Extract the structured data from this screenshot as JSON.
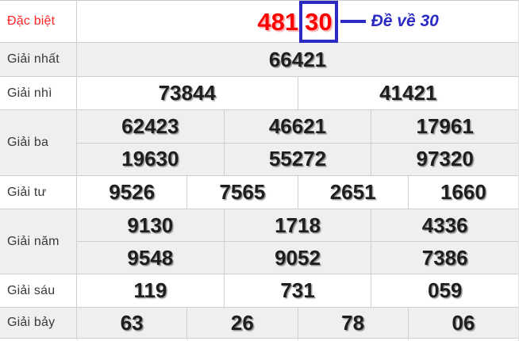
{
  "colors": {
    "red": "#ff0000",
    "blue": "#2b2bc4",
    "value_text": "#1e1e1e",
    "label_text": "#3a3a3a",
    "alt_row_bg": "#efefef",
    "border": "#cfcfcf"
  },
  "special": {
    "label": "Đặc biệt",
    "prefix": "481",
    "boxed": "30",
    "note": "Đề về 30"
  },
  "rows": [
    {
      "label": "Giải nhất",
      "lines": [
        [
          "66421"
        ]
      ]
    },
    {
      "label": "Giải nhì",
      "lines": [
        [
          "73844",
          "41421"
        ]
      ]
    },
    {
      "label": "Giải ba",
      "lines": [
        [
          "62423",
          "46621",
          "17961"
        ],
        [
          "19630",
          "55272",
          "97320"
        ]
      ]
    },
    {
      "label": "Giải tư",
      "lines": [
        [
          "9526",
          "7565",
          "2651",
          "1660"
        ]
      ]
    },
    {
      "label": "Giải năm",
      "lines": [
        [
          "9130",
          "1718",
          "4336"
        ],
        [
          "9548",
          "9052",
          "7386"
        ]
      ]
    },
    {
      "label": "Giải sáu",
      "lines": [
        [
          "119",
          "731",
          "059"
        ]
      ]
    },
    {
      "label": "Giải bảy",
      "lines": [
        [
          "63",
          "26",
          "78",
          "06"
        ]
      ]
    }
  ]
}
